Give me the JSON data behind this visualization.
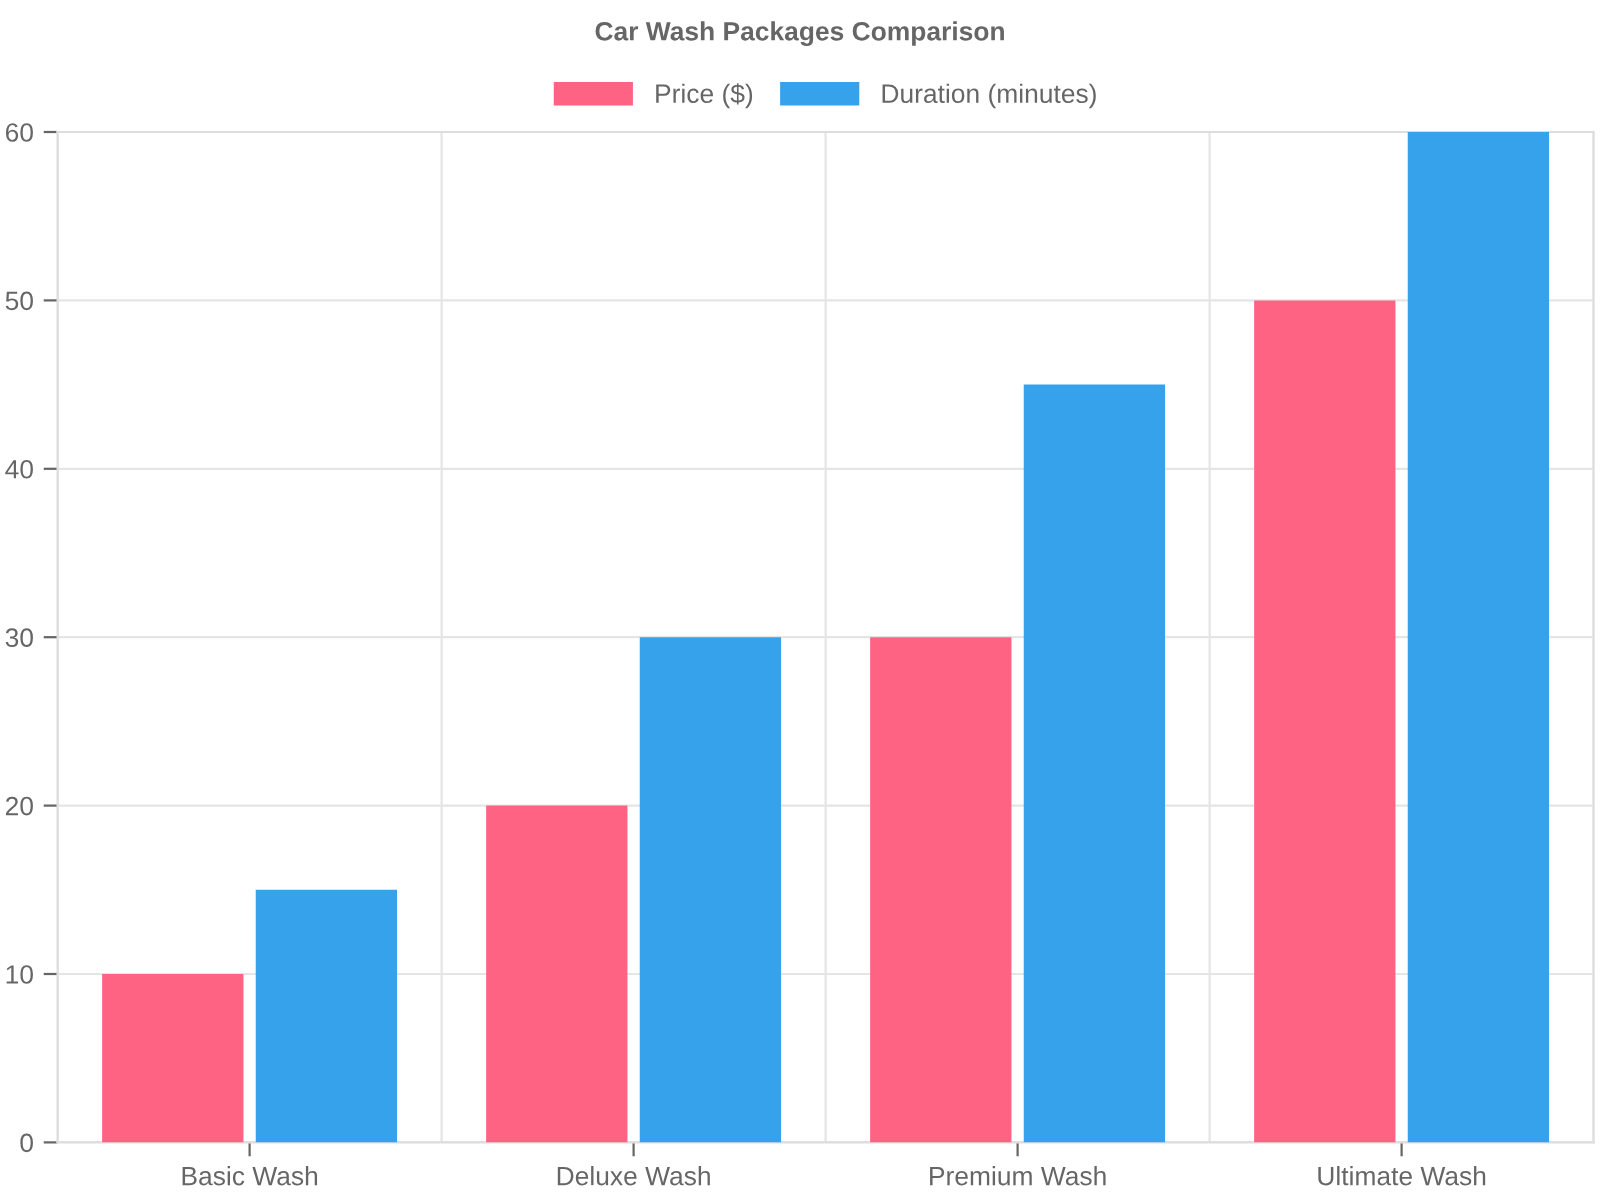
{
  "chart_data": {
    "type": "bar",
    "title": "Car Wash Packages Comparison",
    "categories": [
      "Basic Wash",
      "Deluxe Wash",
      "Premium Wash",
      "Ultimate Wash"
    ],
    "series": [
      {
        "name": "Price ($)",
        "color": "#ff6384",
        "values": [
          10,
          20,
          30,
          50
        ]
      },
      {
        "name": "Duration (minutes)",
        "color": "#36a2eb",
        "values": [
          15,
          30,
          45,
          60
        ]
      }
    ],
    "ylim": [
      0,
      60
    ],
    "yticks": [
      0,
      10,
      20,
      30,
      40,
      50,
      60
    ],
    "grid": true,
    "legend": "top"
  }
}
